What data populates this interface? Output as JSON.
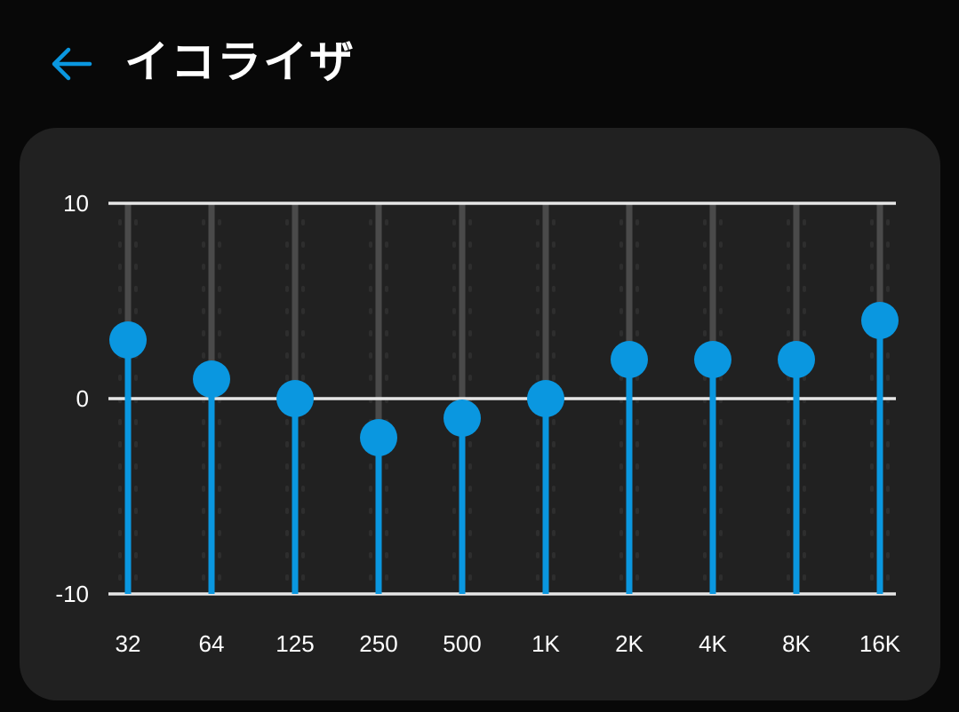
{
  "header": {
    "title": "イコライザ",
    "back_icon": "arrow-left-icon"
  },
  "colors": {
    "accent": "#0A97E0",
    "track": "#4A4A4A",
    "card": "#212121",
    "background": "#080808",
    "gridline": "#E6E6E6"
  },
  "chart_data": {
    "type": "bar",
    "ylim": [
      -10,
      10
    ],
    "yticks": [
      "10",
      "0",
      "-10"
    ],
    "categories": [
      "32",
      "64",
      "125",
      "250",
      "500",
      "1K",
      "2K",
      "4K",
      "8K",
      "16K"
    ],
    "values": [
      3,
      1,
      0,
      -2,
      -1,
      0,
      2,
      2,
      2,
      4
    ]
  }
}
